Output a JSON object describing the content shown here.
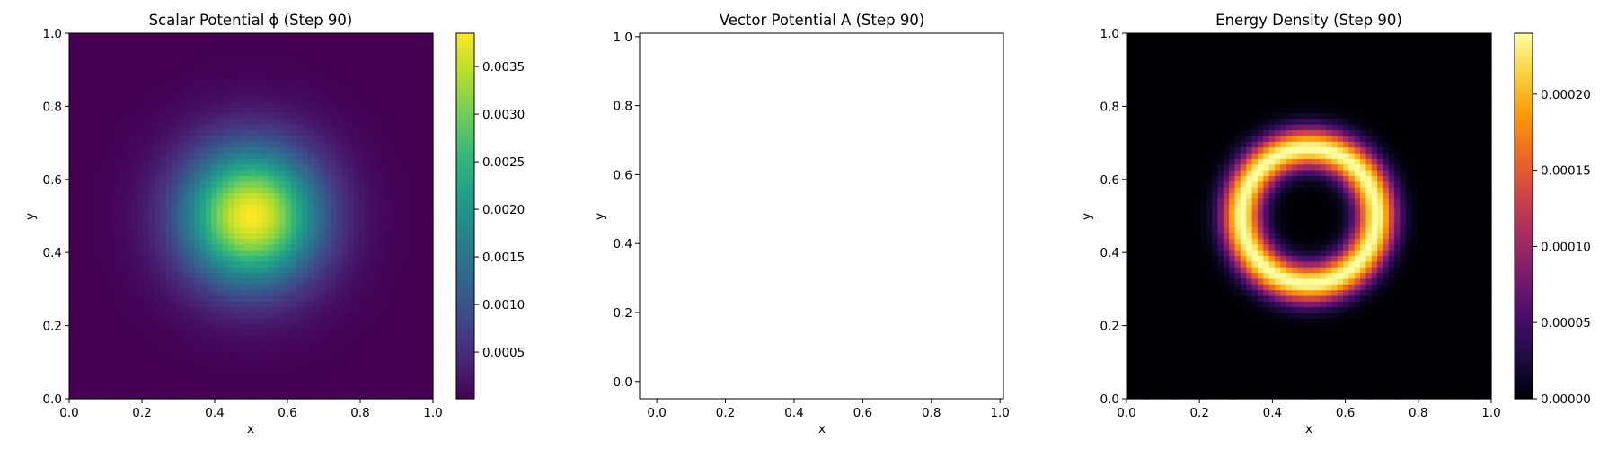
{
  "chart_data": [
    {
      "type": "heatmap",
      "title": "Scalar Potential ϕ (Step 90)",
      "xlabel": "x",
      "ylabel": "y",
      "xlim": [
        0,
        1
      ],
      "ylim": [
        0,
        1
      ],
      "x_ticks": [
        "0.0",
        "0.2",
        "0.4",
        "0.6",
        "0.8",
        "1.0"
      ],
      "y_ticks": [
        "0.0",
        "0.2",
        "0.4",
        "0.6",
        "0.8",
        "1.0"
      ],
      "colormap": "viridis",
      "field": {
        "shape": "gaussian",
        "center": [
          0.5,
          0.5
        ],
        "sigma": 0.13,
        "max": 0.00385,
        "min": 1e-05
      },
      "colorbar": {
        "range": [
          1e-05,
          0.00385
        ],
        "ticks": [
          {
            "value": 0.0005,
            "label": "0.0005"
          },
          {
            "value": 0.001,
            "label": "0.0010"
          },
          {
            "value": 0.0015,
            "label": "0.0015"
          },
          {
            "value": 0.002,
            "label": "0.0020"
          },
          {
            "value": 0.0025,
            "label": "0.0025"
          },
          {
            "value": 0.003,
            "label": "0.0030"
          },
          {
            "value": 0.0035,
            "label": "0.0035"
          }
        ]
      }
    },
    {
      "type": "scatter",
      "title": "Vector Potential A (Step 90)",
      "xlabel": "x",
      "ylabel": "y",
      "xlim": [
        -0.05,
        1.01
      ],
      "ylim": [
        -0.05,
        1.01
      ],
      "x_ticks": [
        "0.0",
        "0.2",
        "0.4",
        "0.6",
        "0.8",
        "1.0"
      ],
      "y_ticks": [
        "0.0",
        "0.2",
        "0.4",
        "0.6",
        "0.8",
        "1.0"
      ],
      "series": []
    },
    {
      "type": "heatmap",
      "title": "Energy Density (Step 90)",
      "xlabel": "x",
      "ylabel": "y",
      "xlim": [
        0,
        1
      ],
      "ylim": [
        0,
        1
      ],
      "x_ticks": [
        "0.0",
        "0.2",
        "0.4",
        "0.6",
        "0.8",
        "1.0"
      ],
      "y_ticks": [
        "0.0",
        "0.2",
        "0.4",
        "0.6",
        "0.8",
        "1.0"
      ],
      "colormap": "inferno",
      "field": {
        "shape": "ring",
        "center": [
          0.5,
          0.5
        ],
        "radius": 0.185,
        "width": 0.055,
        "max": 0.00024,
        "min": 0
      },
      "colorbar": {
        "range": [
          0,
          0.00024
        ],
        "ticks": [
          {
            "value": 0.0,
            "label": "0.00000"
          },
          {
            "value": 5e-05,
            "label": "0.00005"
          },
          {
            "value": 0.0001,
            "label": "0.00010"
          },
          {
            "value": 0.00015,
            "label": "0.00015"
          },
          {
            "value": 0.0002,
            "label": "0.00020"
          }
        ]
      }
    }
  ]
}
